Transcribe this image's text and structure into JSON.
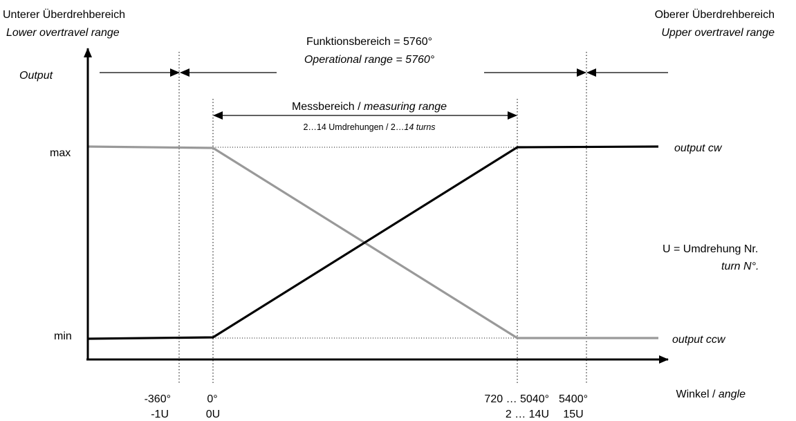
{
  "header": {
    "lower_de": "Unterer Überdrehbereich",
    "lower_en": "Lower overtravel range",
    "upper_de": "Oberer Überdrehbereich",
    "upper_en": "Upper overtravel range",
    "func_de": "Funktionsbereich = 5760°",
    "func_en": "Operational range = 5760°"
  },
  "measuring": {
    "title_de": "Messbereich / ",
    "title_en": "measuring range",
    "turns_de": "2…14 Umdrehungen  / 2…",
    "turns_en": "14 turns"
  },
  "axes": {
    "y_title": "Output",
    "y_max": "max",
    "y_min": "min",
    "x_title_de": "Winkel / ",
    "x_title_en": "angle"
  },
  "series": {
    "cw_label": "output cw",
    "ccw_label": "output ccw",
    "cw_color": "#000000",
    "ccw_color": "#999999"
  },
  "legend": {
    "line1": "U = Umdrehung Nr.",
    "line2": "turn N°."
  },
  "ticks": [
    {
      "angle": "-360°",
      "turn": "-1U"
    },
    {
      "angle": "0°",
      "turn": "0U"
    },
    {
      "angle": "720 … 5040°",
      "turn": "2 … 14U"
    },
    {
      "angle": "5400°",
      "turn": "15U"
    }
  ]
}
